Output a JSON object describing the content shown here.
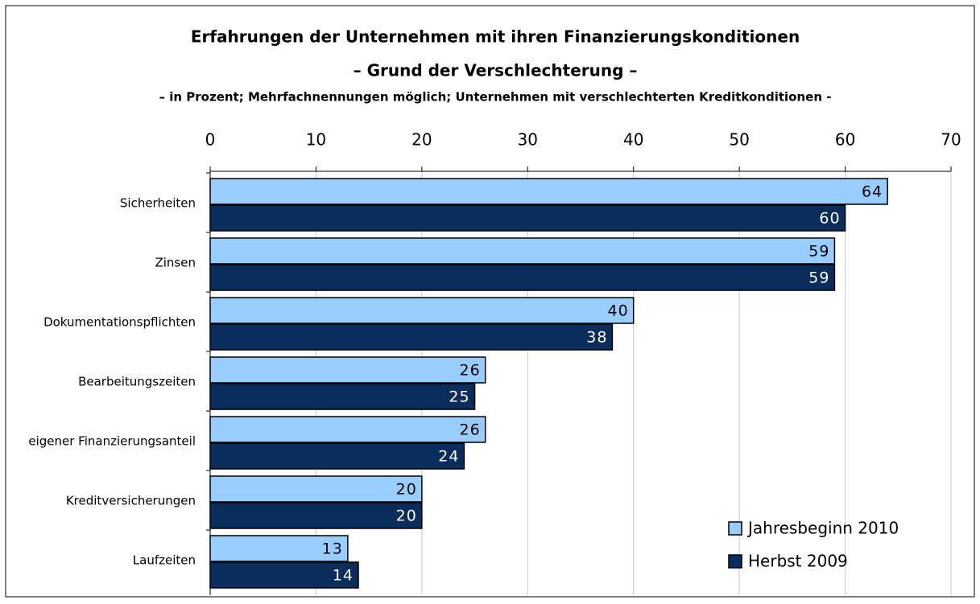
{
  "chart_data": {
    "type": "bar",
    "orientation": "horizontal",
    "title": [
      "Erfahrungen der Unternehmen mit ihren Finanzierungskonditionen",
      "– Grund der Verschlechterung –"
    ],
    "subtitle": "– in Prozent; Mehrfachnennungen möglich; Unternehmen mit verschlechterten Kreditkonditionen -",
    "categories": [
      "Sicherheiten",
      "Zinsen",
      "Dokumentationspflichten",
      "Bearbeitungszeiten",
      "eigener Finanzierungsanteil",
      "Kreditversicherungen",
      "Laufzeiten"
    ],
    "series": [
      {
        "name": "Jahresbeginn 2010",
        "color": "#99ccff",
        "values": [
          64,
          59,
          40,
          26,
          26,
          20,
          13
        ]
      },
      {
        "name": "Herbst 2009",
        "color": "#0b2d5c",
        "values": [
          60,
          59,
          38,
          25,
          24,
          20,
          14
        ]
      }
    ],
    "xlim": [
      0,
      70
    ],
    "xticks": [
      0,
      10,
      20,
      30,
      40,
      50,
      60,
      70
    ],
    "grid": true,
    "legend": "bottom-right"
  }
}
